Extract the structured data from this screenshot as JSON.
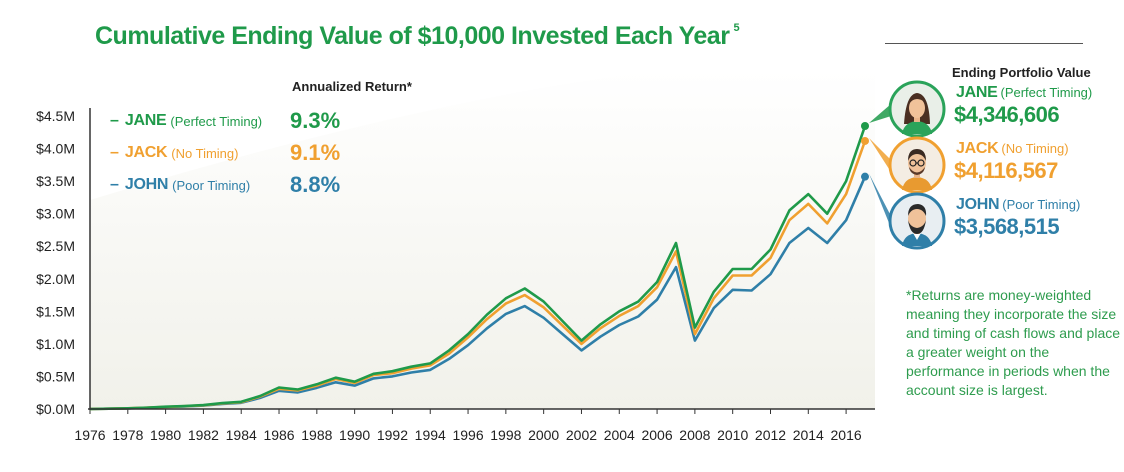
{
  "title": "Cumulative Ending Value of $10,000 Invested Each Year",
  "footnote_mark": "5",
  "annualized_label": "Annualized Return*",
  "ending_label": "Ending Portfolio Value",
  "colors": {
    "jane": "#1f9a4a",
    "jack": "#f0a030",
    "john": "#2f7fa8",
    "title": "#1f9a4a",
    "note": "#2e9c4e"
  },
  "investors": [
    {
      "name": "JANE",
      "timing": "(Perfect Timing)",
      "return": "9.3%",
      "ending_value": "$4,346,606",
      "avatar": "woman-avatar-icon"
    },
    {
      "name": "JACK",
      "timing": "(No Timing)",
      "return": "9.1%",
      "ending_value": "$4,116,567",
      "avatar": "man-glasses-avatar-icon"
    },
    {
      "name": "JOHN",
      "timing": "(Poor Timing)",
      "return": "8.8%",
      "ending_value": "$3,568,515",
      "avatar": "man-beard-avatar-icon"
    }
  ],
  "note": "*Returns are money-weighted meaning they incorporate the size and timing of cash flows and place a greater weight on the performance in periods when the account size is largest.",
  "chart_data": {
    "type": "line",
    "title": "Cumulative Ending Value of $10,000 Invested Each Year",
    "xlabel": "",
    "ylabel": "",
    "xlim": [
      1976,
      2017
    ],
    "ylim": [
      0,
      4500000
    ],
    "x_ticks": [
      "1976",
      "1978",
      "1980",
      "1982",
      "1984",
      "1986",
      "1988",
      "1990",
      "1992",
      "1994",
      "1996",
      "1998",
      "2000",
      "2002",
      "2004",
      "2006",
      "2008",
      "2010",
      "2012",
      "2014",
      "2016"
    ],
    "y_ticks": [
      "$0.0M",
      "$0.5M",
      "$1.0M",
      "$1.5M",
      "$2.0M",
      "$2.5M",
      "$3.0M",
      "$3.5M",
      "$4.0M",
      "$4.5M"
    ],
    "y_tick_values": [
      0,
      500000,
      1000000,
      1500000,
      2000000,
      2500000,
      3000000,
      3500000,
      4000000,
      4500000
    ],
    "x": [
      1976,
      1977,
      1978,
      1979,
      1980,
      1981,
      1982,
      1983,
      1984,
      1985,
      1986,
      1987,
      1988,
      1989,
      1990,
      1991,
      1992,
      1993,
      1994,
      1995,
      1996,
      1997,
      1998,
      1999,
      2000,
      2001,
      2002,
      2003,
      2004,
      2005,
      2006,
      2007,
      2008,
      2009,
      2010,
      2011,
      2012,
      2013,
      2014,
      2015,
      2016,
      2017
    ],
    "series": [
      {
        "name": "JANE",
        "values": [
          0,
          5000,
          10000,
          20000,
          35000,
          45000,
          60000,
          90000,
          110000,
          200000,
          330000,
          300000,
          380000,
          480000,
          420000,
          540000,
          580000,
          650000,
          700000,
          900000,
          1150000,
          1450000,
          1700000,
          1850000,
          1650000,
          1350000,
          1050000,
          1300000,
          1500000,
          1650000,
          1950000,
          2550000,
          1250000,
          1800000,
          2150000,
          2150000,
          2450000,
          3050000,
          3300000,
          3000000,
          3500000,
          4346606
        ]
      },
      {
        "name": "JACK",
        "values": [
          0,
          5000,
          10000,
          20000,
          33000,
          43000,
          57000,
          85000,
          105000,
          190000,
          310000,
          285000,
          360000,
          460000,
          400000,
          520000,
          550000,
          620000,
          670000,
          850000,
          1100000,
          1380000,
          1620000,
          1750000,
          1560000,
          1280000,
          1000000,
          1240000,
          1430000,
          1580000,
          1870000,
          2420000,
          1150000,
          1700000,
          2050000,
          2050000,
          2320000,
          2900000,
          3150000,
          2850000,
          3300000,
          4116567
        ]
      },
      {
        "name": "JOHN",
        "values": [
          0,
          4000,
          9000,
          18000,
          30000,
          40000,
          52000,
          78000,
          95000,
          170000,
          280000,
          255000,
          325000,
          410000,
          360000,
          470000,
          500000,
          560000,
          600000,
          770000,
          980000,
          1240000,
          1460000,
          1580000,
          1400000,
          1150000,
          900000,
          1110000,
          1290000,
          1420000,
          1680000,
          2180000,
          1050000,
          1550000,
          1830000,
          1820000,
          2070000,
          2550000,
          2780000,
          2550000,
          2900000,
          3568515
        ]
      }
    ]
  }
}
